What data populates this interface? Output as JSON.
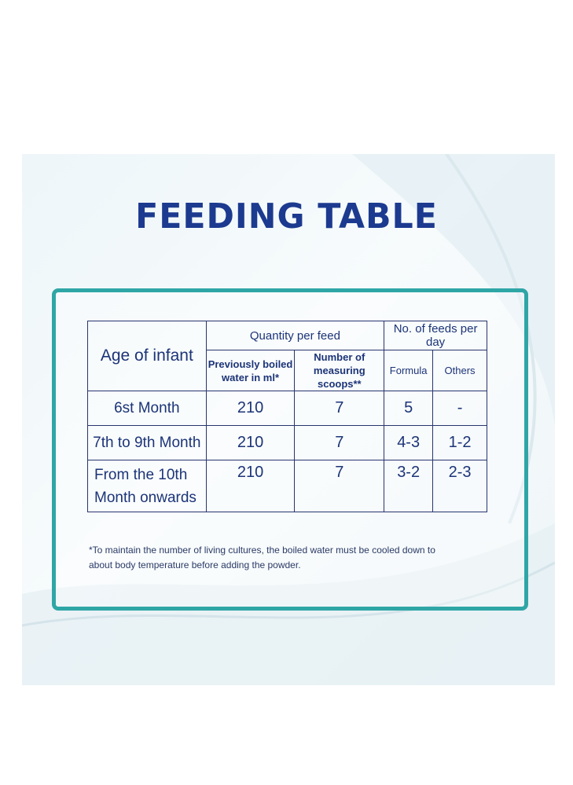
{
  "title": "FEEDING TABLE",
  "table": {
    "age_header": "Age of infant",
    "group_quantity": "Quantity per feed",
    "group_feeds": "No. of feeds per day",
    "sub_water": "Previously boiled water in ml*",
    "sub_scoops": "Number of measuring scoops**",
    "sub_formula": "Formula",
    "sub_others": "Others",
    "rows": [
      {
        "age": "6st Month",
        "water": "210",
        "scoops": "7",
        "formula": "5",
        "others": "-"
      },
      {
        "age": "7th to 9th Month",
        "water": "210",
        "scoops": "7",
        "formula": "4-3",
        "others": "1-2"
      },
      {
        "age": "From the 10th Month onwards",
        "water": "210",
        "scoops": "7",
        "formula": "3-2",
        "others": "2-3"
      }
    ]
  },
  "footnote": "*To maintain the number of living cultures, the boiled water must be cooled down to about body temperature  before adding the powder.",
  "colors": {
    "title": "#1c3a8f",
    "frame": "#2fa6a6",
    "table_text": "#1c3478"
  }
}
